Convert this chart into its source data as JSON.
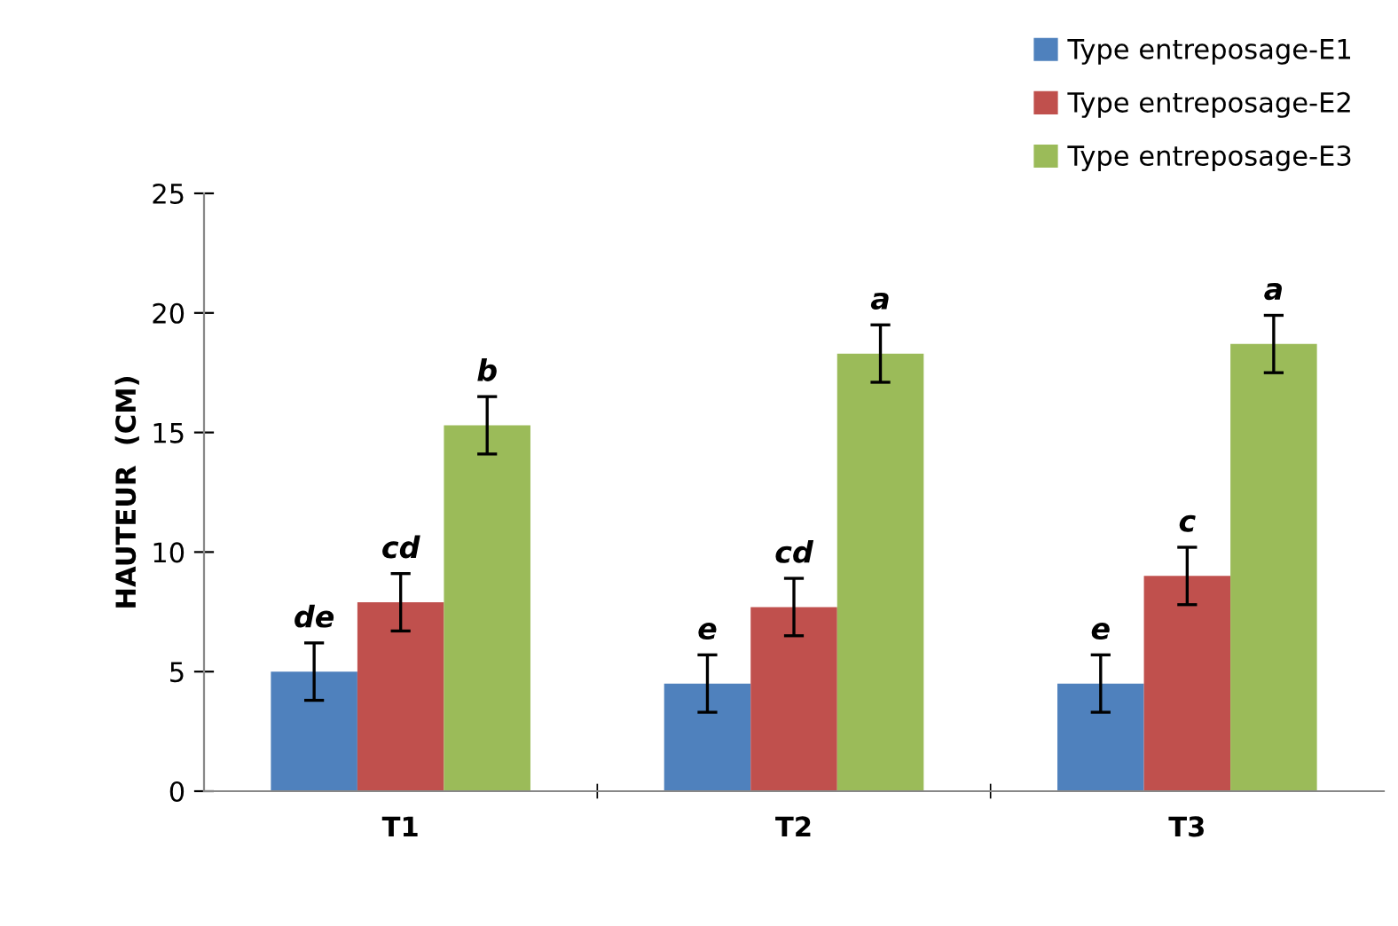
{
  "chart_data": {
    "type": "bar",
    "ylabel": "HAUTEUR  (CM)",
    "categories": [
      "T1",
      "T2",
      "T3"
    ],
    "series": [
      {
        "name": "Type entreposage-E1",
        "color": "#4f81bd",
        "values": [
          5.0,
          4.5,
          4.5
        ],
        "errors": [
          1.2,
          1.2,
          1.2
        ],
        "value_labels": [
          "de",
          "e",
          "e"
        ]
      },
      {
        "name": "Type entreposage-E2",
        "color": "#c0504d",
        "values": [
          7.9,
          7.7,
          9.0
        ],
        "errors": [
          1.2,
          1.2,
          1.2
        ],
        "value_labels": [
          "cd",
          "cd",
          "c"
        ]
      },
      {
        "name": "Type entreposage-E3",
        "color": "#9bbb59",
        "values": [
          15.3,
          18.3,
          18.7
        ],
        "errors": [
          1.2,
          1.2,
          1.2
        ],
        "value_labels": [
          "b",
          "a",
          "a"
        ]
      }
    ],
    "ylim": [
      0,
      25
    ],
    "yticks": [
      0,
      5,
      10,
      15,
      20,
      25
    ],
    "grid": false,
    "legend": "top right"
  }
}
